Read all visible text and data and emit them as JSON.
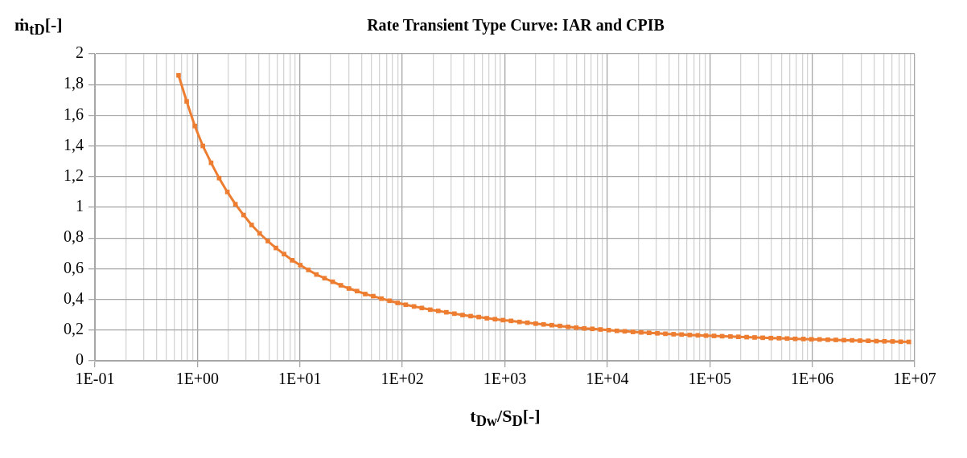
{
  "chart_data": {
    "type": "line",
    "title": "Rate Transient Type Curve: IAR and CPIB",
    "xlabel": "t$_{Dw}$/S$_{D}$[-]",
    "ylabel": "ṁ$_{tD}$[-]",
    "log": "x",
    "grid": true,
    "legend": false,
    "marker": "square",
    "line_style": "solid",
    "xlim": [
      0.1,
      10000000
    ],
    "ylim": [
      0,
      2
    ],
    "xticks": [
      {
        "value": 0.1,
        "label": "1E-01"
      },
      {
        "value": 0.2,
        "label": null
      },
      {
        "value": 0.3,
        "label": null
      },
      {
        "value": 0.4,
        "label": null
      },
      {
        "value": 0.5,
        "label": null
      },
      {
        "value": 0.6,
        "label": null
      },
      {
        "value": 0.7,
        "label": null
      },
      {
        "value": 0.8,
        "label": null
      },
      {
        "value": 0.9,
        "label": null
      },
      {
        "value": 1,
        "label": "1E+00"
      },
      {
        "value": 2,
        "label": null
      },
      {
        "value": 3,
        "label": null
      },
      {
        "value": 4,
        "label": null
      },
      {
        "value": 5,
        "label": null
      },
      {
        "value": 6,
        "label": null
      },
      {
        "value": 7,
        "label": null
      },
      {
        "value": 8,
        "label": null
      },
      {
        "value": 9,
        "label": null
      },
      {
        "value": 10,
        "label": "1E+01"
      },
      {
        "value": 20,
        "label": null
      },
      {
        "value": 30,
        "label": null
      },
      {
        "value": 40,
        "label": null
      },
      {
        "value": 50,
        "label": null
      },
      {
        "value": 60,
        "label": null
      },
      {
        "value": 70,
        "label": null
      },
      {
        "value": 80,
        "label": null
      },
      {
        "value": 90,
        "label": null
      },
      {
        "value": 100,
        "label": "1E+02"
      },
      {
        "value": 200,
        "label": null
      },
      {
        "value": 300,
        "label": null
      },
      {
        "value": 400,
        "label": null
      },
      {
        "value": 500,
        "label": null
      },
      {
        "value": 600,
        "label": null
      },
      {
        "value": 700,
        "label": null
      },
      {
        "value": 800,
        "label": null
      },
      {
        "value": 900,
        "label": null
      },
      {
        "value": 1000,
        "label": "1E+03"
      },
      {
        "value": 2000,
        "label": null
      },
      {
        "value": 3000,
        "label": null
      },
      {
        "value": 4000,
        "label": null
      },
      {
        "value": 5000,
        "label": null
      },
      {
        "value": 6000,
        "label": null
      },
      {
        "value": 7000,
        "label": null
      },
      {
        "value": 8000,
        "label": null
      },
      {
        "value": 9000,
        "label": null
      },
      {
        "value": 10000,
        "label": "1E+04"
      },
      {
        "value": 20000,
        "label": null
      },
      {
        "value": 30000,
        "label": null
      },
      {
        "value": 40000,
        "label": null
      },
      {
        "value": 50000,
        "label": null
      },
      {
        "value": 60000,
        "label": null
      },
      {
        "value": 70000,
        "label": null
      },
      {
        "value": 80000,
        "label": null
      },
      {
        "value": 90000,
        "label": null
      },
      {
        "value": 100000,
        "label": "1E+05"
      },
      {
        "value": 200000,
        "label": null
      },
      {
        "value": 300000,
        "label": null
      },
      {
        "value": 400000,
        "label": null
      },
      {
        "value": 500000,
        "label": null
      },
      {
        "value": 600000,
        "label": null
      },
      {
        "value": 700000,
        "label": null
      },
      {
        "value": 800000,
        "label": null
      },
      {
        "value": 900000,
        "label": null
      },
      {
        "value": 1000000,
        "label": "1E+06"
      },
      {
        "value": 2000000,
        "label": null
      },
      {
        "value": 3000000,
        "label": null
      },
      {
        "value": 4000000,
        "label": null
      },
      {
        "value": 5000000,
        "label": null
      },
      {
        "value": 6000000,
        "label": null
      },
      {
        "value": 7000000,
        "label": null
      },
      {
        "value": 8000000,
        "label": null
      },
      {
        "value": 9000000,
        "label": null
      },
      {
        "value": 10000000,
        "label": "1E+07"
      }
    ],
    "yticks": [
      0,
      {
        "value": 0.2,
        "label": "0,2"
      },
      {
        "value": 0.4,
        "label": "0,4"
      },
      {
        "value": 0.6,
        "label": "0,6"
      },
      {
        "value": 0.8,
        "label": "0,8"
      },
      1,
      {
        "value": 1.2,
        "label": "1,2"
      },
      {
        "value": 1.4,
        "label": "1,4"
      },
      {
        "value": 1.6,
        "label": "1,6"
      },
      {
        "value": 1.8,
        "label": "1,8"
      },
      2
    ],
    "series": [
      {
        "color": "#ed7d31",
        "x": [
          0.655,
          0.786,
          0.943,
          1.13,
          1.36,
          1.63,
          1.96,
          2.35,
          2.82,
          3.38,
          4.05,
          4.87,
          5.84,
          7.01,
          8.41,
          10.1,
          12.1,
          14.5,
          17.4,
          20.9,
          25.1,
          30.1,
          36.1,
          43.4,
          52.0,
          62.5,
          75.0,
          89.9,
          108,
          130,
          155,
          187,
          224,
          269,
          322,
          387,
          464,
          557,
          668,
          802,
          962,
          1150,
          1390,
          1660,
          2000,
          2390,
          2870,
          3450,
          4140,
          4970,
          5960,
          7150,
          8580,
          10300,
          12400,
          14800,
          17800,
          21400,
          25600,
          30800,
          36900,
          44300,
          53100,
          63800,
          76500,
          91800,
          110000,
          132000,
          159000,
          190000,
          229000,
          274000,
          329000,
          395000,
          474000,
          568000,
          682000,
          819000,
          983000,
          1180000,
          1420000,
          1700000,
          2040000,
          2450000,
          2930000,
          3520000,
          4230000,
          5070000,
          6080000,
          7300000,
          8760000
        ],
        "values": [
          1.86,
          1.69,
          1.53,
          1.4,
          1.29,
          1.19,
          1.1,
          1.02,
          0.95,
          0.885,
          0.83,
          0.78,
          0.735,
          0.695,
          0.655,
          0.623,
          0.592,
          0.562,
          0.538,
          0.515,
          0.492,
          0.471,
          0.454,
          0.435,
          0.421,
          0.405,
          0.391,
          0.377,
          0.365,
          0.354,
          0.344,
          0.333,
          0.325,
          0.316,
          0.307,
          0.298,
          0.291,
          0.285,
          0.277,
          0.271,
          0.265,
          0.26,
          0.253,
          0.248,
          0.242,
          0.237,
          0.232,
          0.227,
          0.221,
          0.216,
          0.211,
          0.208,
          0.204,
          0.2,
          0.195,
          0.192,
          0.188,
          0.185,
          0.182,
          0.179,
          0.176,
          0.173,
          0.171,
          0.168,
          0.166,
          0.164,
          0.162,
          0.16,
          0.158,
          0.156,
          0.154,
          0.152,
          0.15,
          0.148,
          0.147,
          0.145,
          0.143,
          0.142,
          0.14,
          0.139,
          0.137,
          0.136,
          0.134,
          0.133,
          0.131,
          0.13,
          0.128,
          0.127,
          0.126,
          0.124,
          0.123
        ]
      }
    ]
  }
}
